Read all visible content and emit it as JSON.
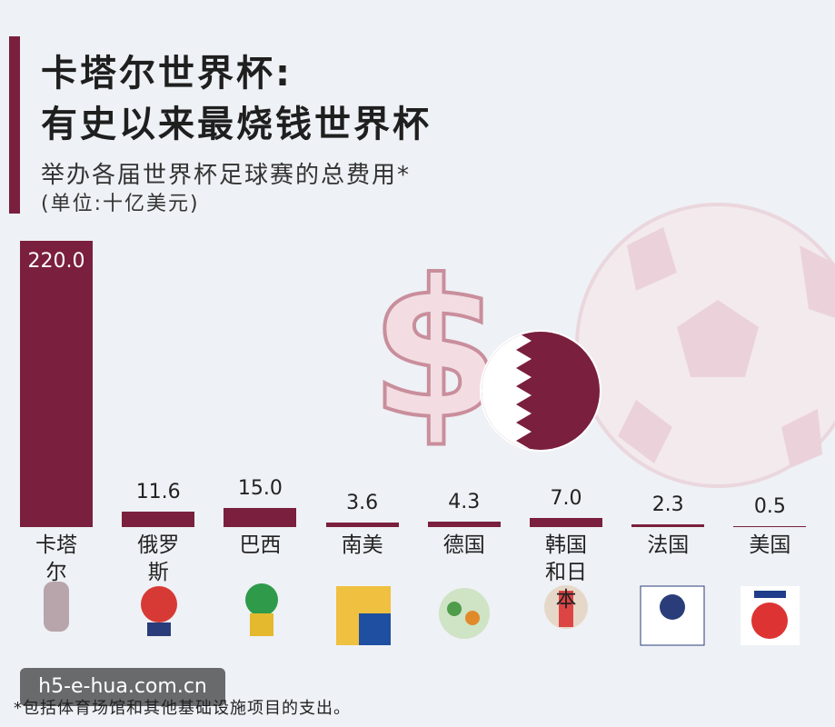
{
  "chart_data": {
    "type": "bar",
    "title": [
      "卡塔尔世界杯:",
      "有史以来最烧钱世界杯"
    ],
    "subtitle": "举办各届世界杯足球赛的总费用*",
    "unit": "(单位:十亿美元)",
    "categories": [
      "卡塔尔",
      "俄罗斯",
      "巴西",
      "南美",
      "德国",
      "韩国和日本",
      "法国",
      "美国"
    ],
    "values": [
      220.0,
      11.6,
      15.0,
      3.6,
      4.3,
      7.0,
      2.3,
      0.5
    ],
    "value_labels": [
      "220.0",
      "11.6",
      "15.0",
      "3.6",
      "4.3",
      "7.0",
      "2.3",
      "0.5"
    ],
    "color": "#7a1f3d",
    "footnote": "*包括体育场馆和其他基础设施项目的支出。",
    "watermark": "h5-e-hua.com.cn"
  }
}
